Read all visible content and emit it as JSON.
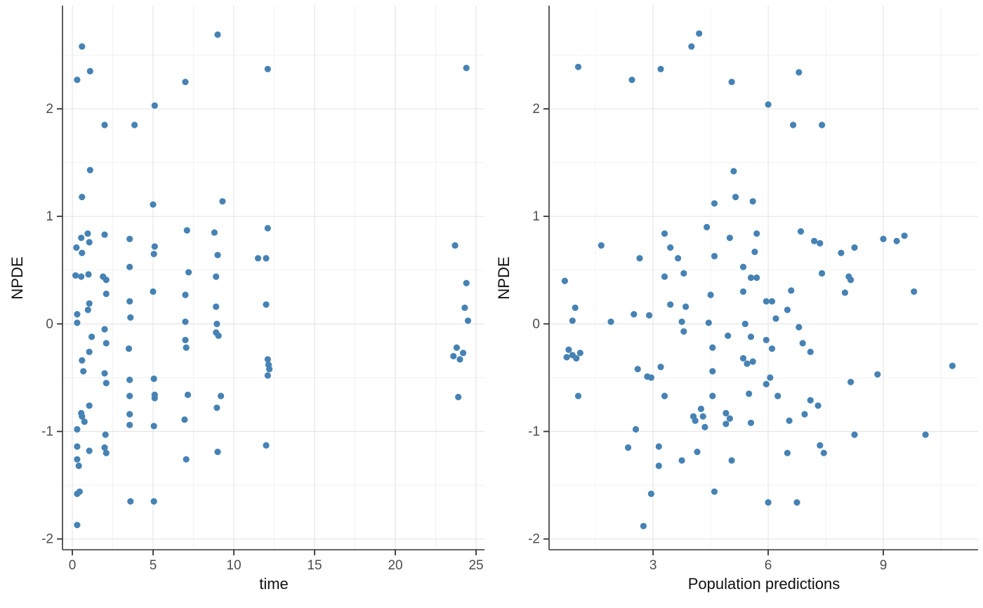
{
  "figure": {
    "background": "#ffffff",
    "point_color": "#4682B4",
    "grid_major_color": "#e6e6e6",
    "grid_minor_color": "#f2f2f2",
    "axis_line_color": "#333333",
    "tick_color": "#333333",
    "tick_label_color": "#4d4d4d",
    "axis_title_color": "#111111"
  },
  "chart_data": [
    {
      "type": "scatter",
      "title": "",
      "xlabel": "time",
      "ylabel": "NPDE",
      "xlim": [
        -0.61,
        25.52
      ],
      "ylim": [
        -2.1,
        2.96
      ],
      "xticks": [
        0,
        5,
        10,
        15,
        20,
        25
      ],
      "yticks": [
        -2,
        -1,
        0,
        1,
        2
      ],
      "xminor": [
        2.5,
        7.5,
        12.5,
        17.5,
        22.5
      ],
      "yminor": [
        -1.5,
        -0.5,
        0.5,
        1.5,
        2.5
      ],
      "grid": true,
      "legend": false,
      "points": [
        [
          9.0,
          2.69
        ],
        [
          0.6,
          2.58
        ],
        [
          1.1,
          2.35
        ],
        [
          0.3,
          2.27
        ],
        [
          7.0,
          2.25
        ],
        [
          12.1,
          2.37
        ],
        [
          24.4,
          2.38
        ],
        [
          5.1,
          2.03
        ],
        [
          2.0,
          1.85
        ],
        [
          3.85,
          1.85
        ],
        [
          1.1,
          1.43
        ],
        [
          0.6,
          1.18
        ],
        [
          5.0,
          1.11
        ],
        [
          9.3,
          1.14
        ],
        [
          12.1,
          0.89
        ],
        [
          0.25,
          0.71
        ],
        [
          0.55,
          0.8
        ],
        [
          0.6,
          0.66
        ],
        [
          0.95,
          0.84
        ],
        [
          1.05,
          0.76
        ],
        [
          2.0,
          0.83
        ],
        [
          3.55,
          0.79
        ],
        [
          5.1,
          0.72
        ],
        [
          5.05,
          0.65
        ],
        [
          7.1,
          0.87
        ],
        [
          8.8,
          0.85
        ],
        [
          9.0,
          0.64
        ],
        [
          11.5,
          0.61
        ],
        [
          12.0,
          0.61
        ],
        [
          3.55,
          0.53
        ],
        [
          23.7,
          0.73
        ],
        [
          0.2,
          0.45
        ],
        [
          0.55,
          0.44
        ],
        [
          1.0,
          0.46
        ],
        [
          1.9,
          0.44
        ],
        [
          2.1,
          0.41
        ],
        [
          7.2,
          0.48
        ],
        [
          8.9,
          0.44
        ],
        [
          24.4,
          0.38
        ],
        [
          2.1,
          0.28
        ],
        [
          5.0,
          0.3
        ],
        [
          7.0,
          0.27
        ],
        [
          1.05,
          0.19
        ],
        [
          3.55,
          0.21
        ],
        [
          8.9,
          0.16
        ],
        [
          12.0,
          0.18
        ],
        [
          0.97,
          0.13
        ],
        [
          0.3,
          0.09
        ],
        [
          3.6,
          0.06
        ],
        [
          0.3,
          0.01
        ],
        [
          7.0,
          0.02
        ],
        [
          8.95,
          0.0
        ],
        [
          24.3,
          0.15
        ],
        [
          24.5,
          0.03
        ],
        [
          2.0,
          -0.05
        ],
        [
          1.2,
          -0.12
        ],
        [
          8.9,
          -0.08
        ],
        [
          9.05,
          -0.11
        ],
        [
          2.1,
          -0.18
        ],
        [
          7.0,
          -0.15
        ],
        [
          7.05,
          -0.22
        ],
        [
          3.5,
          -0.23
        ],
        [
          1.05,
          -0.26
        ],
        [
          0.6,
          -0.34
        ],
        [
          0.68,
          -0.44
        ],
        [
          12.1,
          -0.33
        ],
        [
          12.15,
          -0.38
        ],
        [
          12.2,
          -0.42
        ],
        [
          12.1,
          -0.48
        ],
        [
          2.0,
          -0.46
        ],
        [
          2.1,
          -0.55
        ],
        [
          3.55,
          -0.52
        ],
        [
          5.05,
          -0.51
        ],
        [
          23.8,
          -0.22
        ],
        [
          24.2,
          -0.27
        ],
        [
          23.6,
          -0.3
        ],
        [
          24.0,
          -0.33
        ],
        [
          5.1,
          -0.66
        ],
        [
          5.1,
          -0.69
        ],
        [
          3.55,
          -0.67
        ],
        [
          7.15,
          -0.66
        ],
        [
          9.2,
          -0.67
        ],
        [
          1.05,
          -0.76
        ],
        [
          8.95,
          -0.78
        ],
        [
          0.55,
          -0.83
        ],
        [
          0.6,
          -0.86
        ],
        [
          0.75,
          -0.91
        ],
        [
          3.55,
          -0.84
        ],
        [
          6.95,
          -0.89
        ],
        [
          3.55,
          -0.94
        ],
        [
          5.05,
          -0.95
        ],
        [
          0.3,
          -0.98
        ],
        [
          23.9,
          -0.68
        ],
        [
          2.05,
          -1.03
        ],
        [
          0.3,
          -1.14
        ],
        [
          1.05,
          -1.18
        ],
        [
          2.0,
          -1.15
        ],
        [
          2.1,
          -1.2
        ],
        [
          7.05,
          -1.26
        ],
        [
          12.0,
          -1.13
        ],
        [
          9.0,
          -1.19
        ],
        [
          0.3,
          -1.26
        ],
        [
          0.4,
          -1.32
        ],
        [
          0.45,
          -1.56
        ],
        [
          0.3,
          -1.58
        ],
        [
          3.6,
          -1.65
        ],
        [
          5.05,
          -1.65
        ],
        [
          0.3,
          -1.87
        ]
      ]
    },
    {
      "type": "scatter",
      "title": "",
      "xlabel": "Population predictions",
      "ylabel": "NPDE",
      "xlim": [
        0.29,
        11.47
      ],
      "ylim": [
        -2.1,
        2.96
      ],
      "xticks": [
        3,
        6,
        9
      ],
      "yticks": [
        -2,
        -1,
        0,
        1,
        2
      ],
      "xminor": [
        1.5,
        4.5,
        7.5,
        10.5
      ],
      "yminor": [
        -1.5,
        -0.5,
        0.5,
        1.5,
        2.5
      ],
      "grid": true,
      "legend": false,
      "points": [
        [
          4.2,
          2.7
        ],
        [
          4.0,
          2.58
        ],
        [
          1.05,
          2.39
        ],
        [
          3.2,
          2.37
        ],
        [
          2.45,
          2.27
        ],
        [
          5.05,
          2.25
        ],
        [
          6.8,
          2.34
        ],
        [
          6.0,
          2.04
        ],
        [
          6.65,
          1.85
        ],
        [
          7.4,
          1.85
        ],
        [
          5.1,
          1.42
        ],
        [
          5.15,
          1.18
        ],
        [
          4.6,
          1.12
        ],
        [
          5.6,
          1.14
        ],
        [
          4.4,
          0.9
        ],
        [
          3.3,
          0.84
        ],
        [
          5.0,
          0.8
        ],
        [
          5.7,
          0.84
        ],
        [
          1.65,
          0.73
        ],
        [
          3.45,
          0.71
        ],
        [
          4.6,
          0.63
        ],
        [
          5.65,
          0.67
        ],
        [
          2.65,
          0.61
        ],
        [
          3.65,
          0.61
        ],
        [
          5.35,
          0.53
        ],
        [
          6.85,
          0.86
        ],
        [
          7.2,
          0.77
        ],
        [
          7.35,
          0.75
        ],
        [
          7.9,
          0.66
        ],
        [
          8.25,
          0.71
        ],
        [
          9.0,
          0.79
        ],
        [
          9.35,
          0.77
        ],
        [
          9.55,
          0.82
        ],
        [
          3.3,
          0.44
        ],
        [
          3.8,
          0.47
        ],
        [
          5.55,
          0.43
        ],
        [
          5.7,
          0.43
        ],
        [
          0.7,
          0.4
        ],
        [
          7.4,
          0.47
        ],
        [
          8.1,
          0.44
        ],
        [
          8.15,
          0.41
        ],
        [
          6.6,
          0.31
        ],
        [
          9.8,
          0.3
        ],
        [
          4.5,
          0.27
        ],
        [
          5.35,
          0.3
        ],
        [
          8.0,
          0.29
        ],
        [
          0.97,
          0.15
        ],
        [
          3.45,
          0.18
        ],
        [
          3.85,
          0.16
        ],
        [
          5.95,
          0.21
        ],
        [
          6.1,
          0.21
        ],
        [
          6.5,
          0.13
        ],
        [
          0.9,
          0.03
        ],
        [
          1.9,
          0.02
        ],
        [
          2.5,
          0.09
        ],
        [
          2.9,
          0.08
        ],
        [
          3.75,
          0.02
        ],
        [
          4.45,
          0.01
        ],
        [
          5.4,
          0.0
        ],
        [
          6.2,
          0.05
        ],
        [
          3.8,
          -0.07
        ],
        [
          4.95,
          -0.11
        ],
        [
          5.55,
          -0.12
        ],
        [
          6.8,
          -0.03
        ],
        [
          5.95,
          -0.15
        ],
        [
          6.1,
          -0.23
        ],
        [
          6.9,
          -0.18
        ],
        [
          7.1,
          -0.26
        ],
        [
          4.55,
          -0.22
        ],
        [
          5.35,
          -0.32
        ],
        [
          5.45,
          -0.37
        ],
        [
          5.6,
          -0.35
        ],
        [
          0.8,
          -0.24
        ],
        [
          1.1,
          -0.27
        ],
        [
          0.9,
          -0.29
        ],
        [
          0.75,
          -0.31
        ],
        [
          1.0,
          -0.32
        ],
        [
          2.6,
          -0.42
        ],
        [
          2.85,
          -0.49
        ],
        [
          2.95,
          -0.5
        ],
        [
          3.2,
          -0.4
        ],
        [
          4.55,
          -0.44
        ],
        [
          8.85,
          -0.47
        ],
        [
          10.8,
          -0.39
        ],
        [
          6.05,
          -0.5
        ],
        [
          5.95,
          -0.56
        ],
        [
          8.15,
          -0.54
        ],
        [
          1.05,
          -0.67
        ],
        [
          3.3,
          -0.67
        ],
        [
          4.55,
          -0.67
        ],
        [
          5.5,
          -0.65
        ],
        [
          6.25,
          -0.67
        ],
        [
          7.1,
          -0.71
        ],
        [
          7.3,
          -0.76
        ],
        [
          4.25,
          -0.79
        ],
        [
          4.3,
          -0.86
        ],
        [
          4.05,
          -0.86
        ],
        [
          4.1,
          -0.9
        ],
        [
          4.9,
          -0.83
        ],
        [
          5.0,
          -0.88
        ],
        [
          4.9,
          -0.93
        ],
        [
          4.35,
          -0.96
        ],
        [
          5.55,
          -0.92
        ],
        [
          6.55,
          -0.9
        ],
        [
          6.95,
          -0.84
        ],
        [
          2.55,
          -0.98
        ],
        [
          2.35,
          -1.15
        ],
        [
          3.15,
          -1.14
        ],
        [
          3.15,
          -1.32
        ],
        [
          4.15,
          -1.19
        ],
        [
          3.75,
          -1.27
        ],
        [
          5.05,
          -1.27
        ],
        [
          6.5,
          -1.2
        ],
        [
          7.35,
          -1.13
        ],
        [
          7.45,
          -1.2
        ],
        [
          8.25,
          -1.03
        ],
        [
          10.1,
          -1.03
        ],
        [
          2.95,
          -1.58
        ],
        [
          4.6,
          -1.56
        ],
        [
          6.0,
          -1.66
        ],
        [
          6.75,
          -1.66
        ],
        [
          2.75,
          -1.88
        ]
      ]
    }
  ]
}
